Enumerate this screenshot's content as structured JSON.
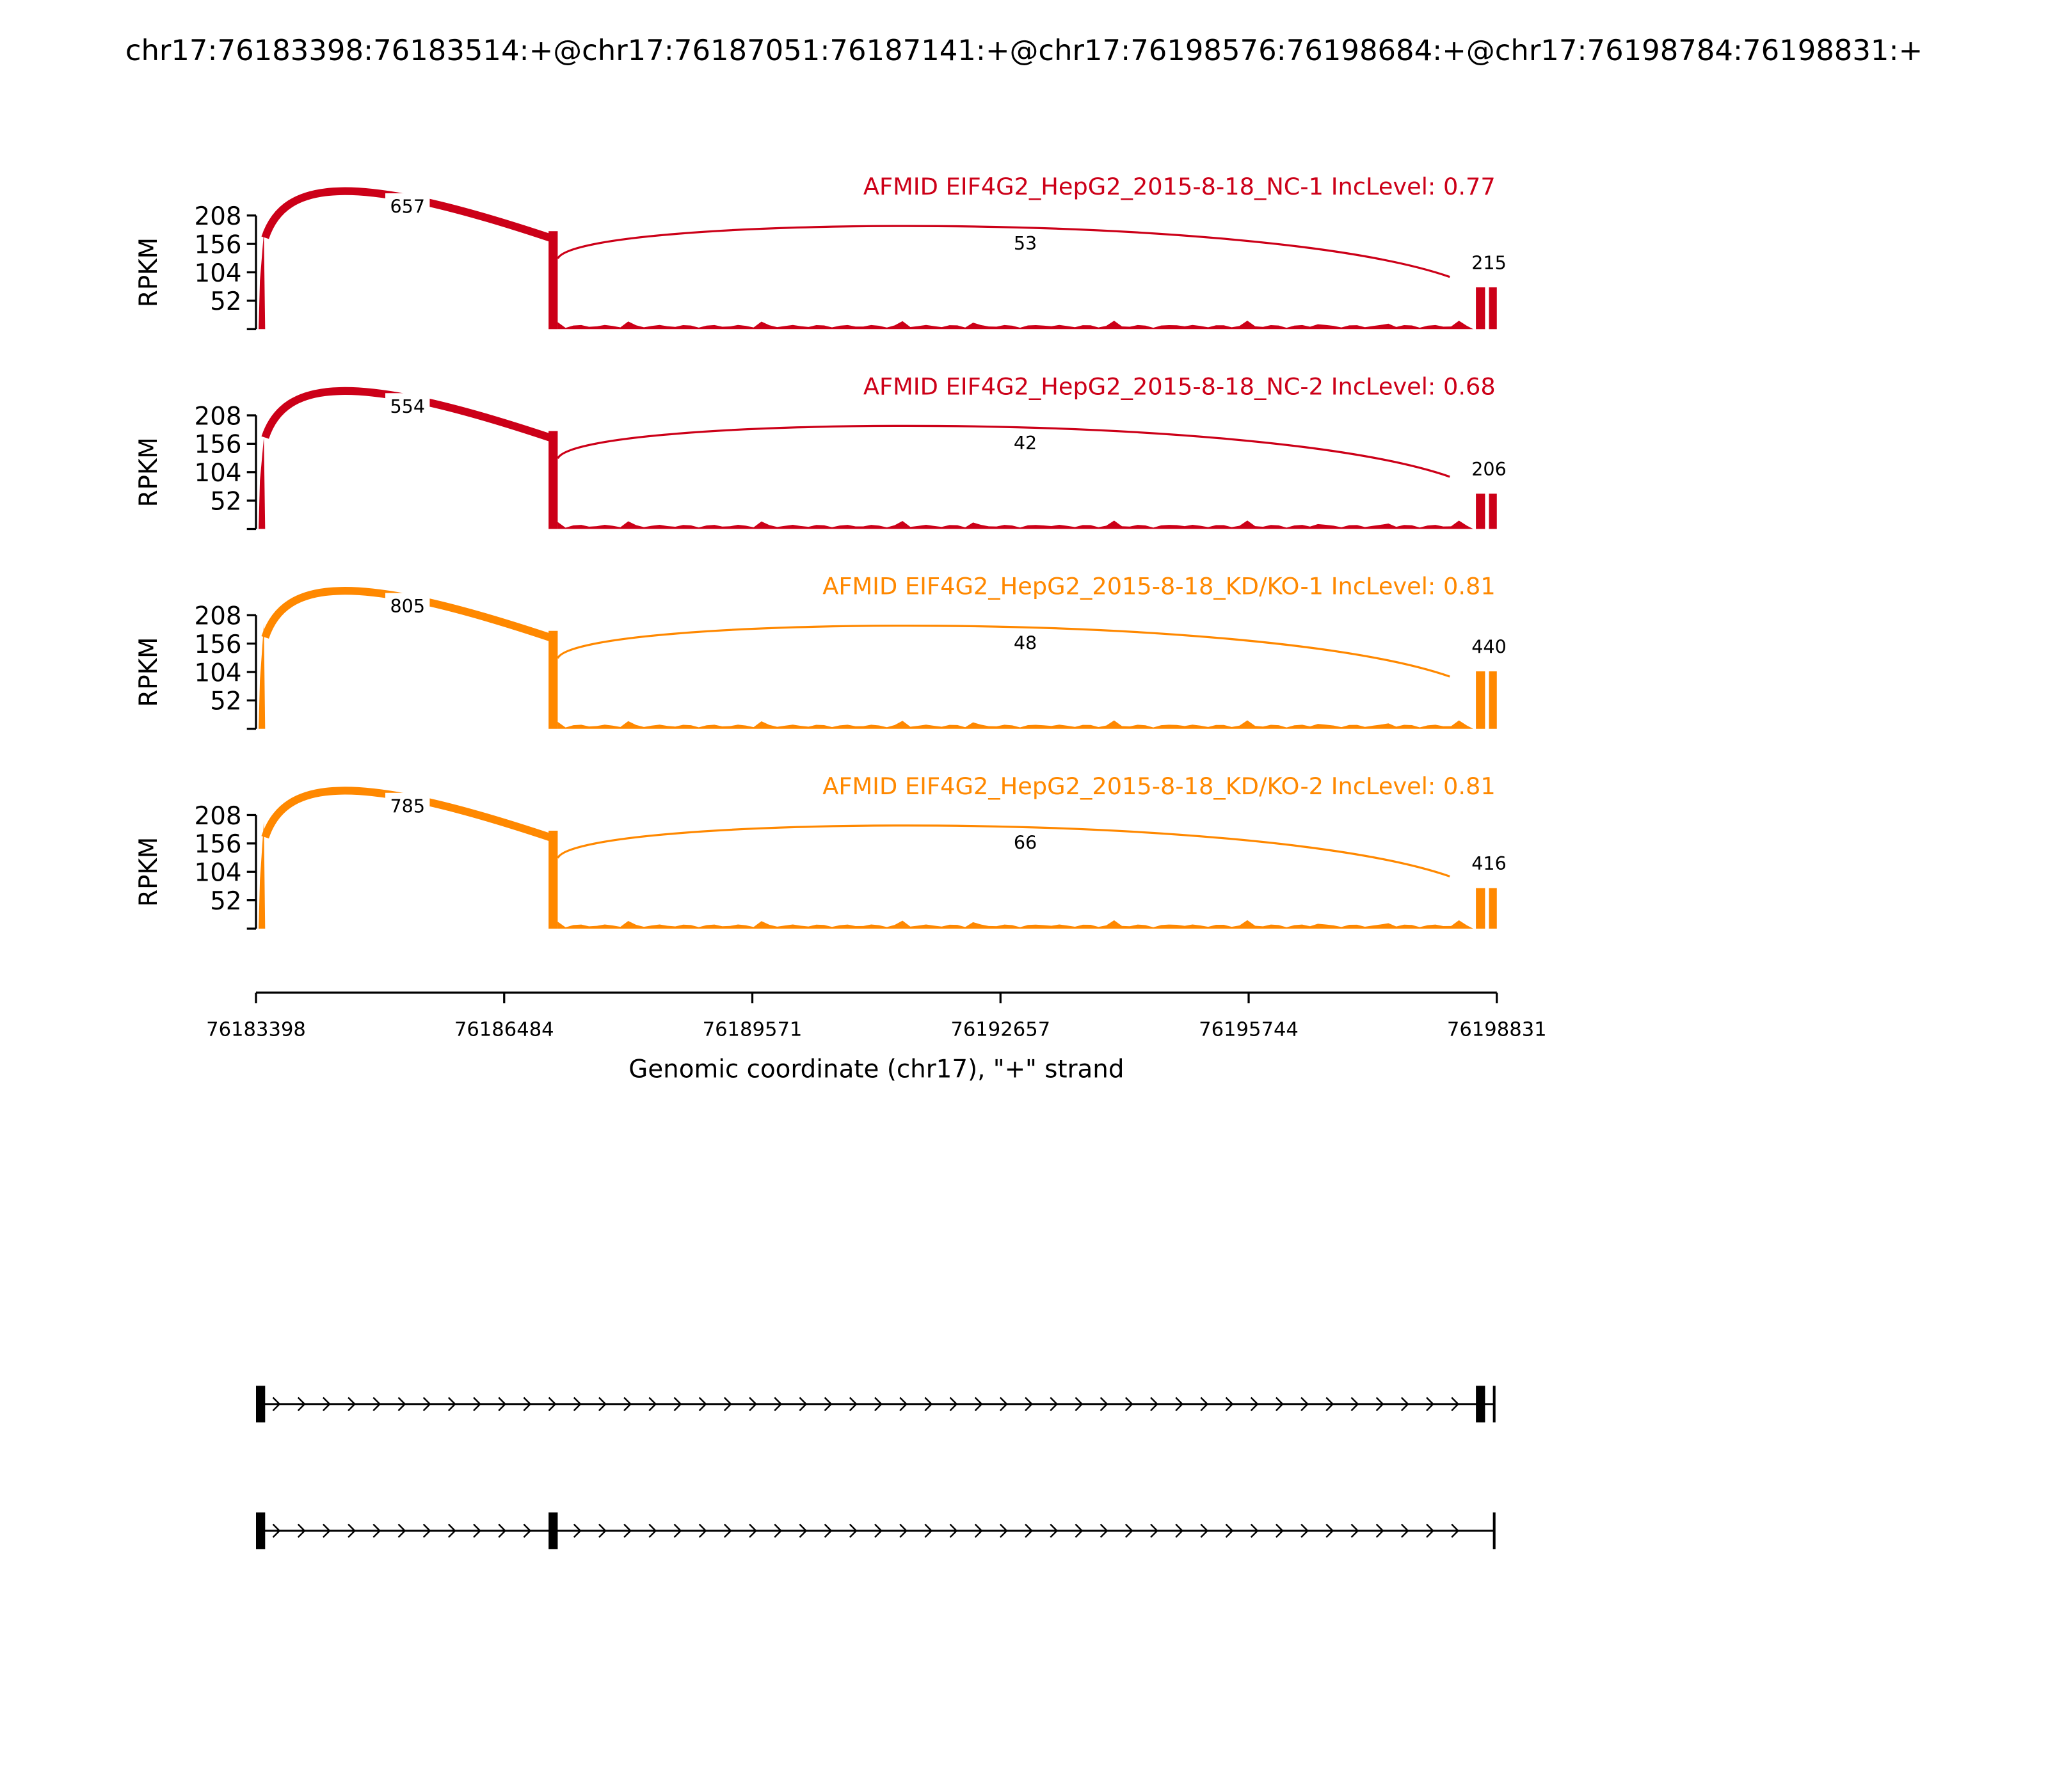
{
  "title": "chr17:76183398:76183514:+@chr17:76187051:76187141:+@chr17:76198576:76198684:+@chr17:76198784:76198831:+",
  "chart_data": {
    "type": "sashimi",
    "ylabel": "RPKM",
    "xlabel": "Genomic coordinate (chr17), \"+\" strand",
    "yticks": [
      "208",
      "156",
      "104",
      "52"
    ],
    "ylim": [
      0,
      208
    ],
    "xticks": [
      "76183398",
      "76186484",
      "76189571",
      "76192657",
      "76195744",
      "76198831"
    ],
    "xlim": [
      76183398,
      76198831
    ],
    "tracks": [
      {
        "label": "AFMID EIF4G2_HepG2_2015-8-18_NC-1 IncLevel: 0.77",
        "color": "#cc0018",
        "junctions": [
          "657",
          "53",
          "215"
        ]
      },
      {
        "label": "AFMID EIF4G2_HepG2_2015-8-18_NC-2 IncLevel: 0.68",
        "color": "#cc0018",
        "junctions": [
          "554",
          "42",
          "206"
        ]
      },
      {
        "label": "AFMID EIF4G2_HepG2_2015-8-18_KD/KO-1 IncLevel: 0.81",
        "color": "#ff8800",
        "junctions": [
          "805",
          "48",
          "440"
        ]
      },
      {
        "label": "AFMID EIF4G2_HepG2_2015-8-18_KD/KO-2 IncLevel: 0.81",
        "color": "#ff8800",
        "junctions": [
          "785",
          "66",
          "416"
        ]
      }
    ]
  }
}
